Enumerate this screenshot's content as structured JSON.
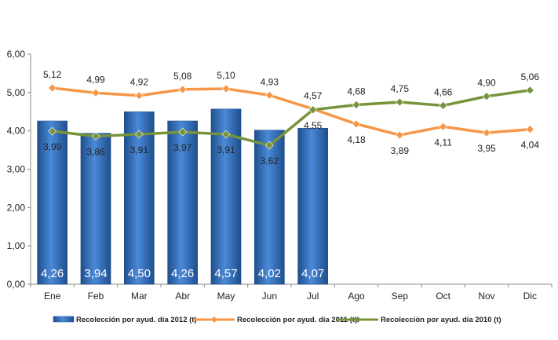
{
  "chart_data": {
    "type": "bar+line",
    "title": "",
    "xlabel": "",
    "ylabel": "",
    "ylim": [
      0,
      6
    ],
    "yticks": [
      "0,00",
      "1,00",
      "2,00",
      "3,00",
      "4,00",
      "5,00",
      "6,00"
    ],
    "grid": false,
    "legend_position": "bottom",
    "categories": [
      "Ene",
      "Feb",
      "Mar",
      "Abr",
      "May",
      "Jun",
      "Jul",
      "Ago",
      "Sep",
      "Oct",
      "Nov",
      "Dic"
    ],
    "series": [
      {
        "name": "Recolección por ayud. día 2012 (t)",
        "kind": "bar",
        "color": "#3a78c9",
        "values": [
          4.26,
          3.94,
          4.5,
          4.26,
          4.57,
          4.02,
          4.07,
          null,
          null,
          null,
          null,
          null
        ],
        "labels": [
          "4,26",
          "3,94",
          "4,50",
          "4,26",
          "4,57",
          "4,02",
          "4,07",
          "",
          "",
          "",
          "",
          ""
        ]
      },
      {
        "name": "Recolección por ayud. día 2011 (t)",
        "kind": "line",
        "color": "#f79646",
        "values": [
          5.12,
          4.99,
          4.92,
          5.08,
          5.1,
          4.93,
          4.57,
          4.18,
          3.89,
          4.11,
          3.95,
          4.04
        ],
        "labels": [
          "5,12",
          "4,99",
          "4,92",
          "5,08",
          "5,10",
          "4,93",
          "4,57",
          "4,18",
          "3,89",
          "4,11",
          "3,95",
          "4,04"
        ]
      },
      {
        "name": "Recolección por ayud. día 2010 (t)",
        "kind": "line",
        "color": "#77933c",
        "values": [
          3.99,
          3.86,
          3.91,
          3.97,
          3.91,
          3.62,
          4.55,
          4.68,
          4.75,
          4.66,
          4.9,
          5.06
        ],
        "labels": [
          "3,99",
          "3,86",
          "3,91",
          "3,97",
          "3,91",
          "3,62",
          "4,55",
          "4,68",
          "4,75",
          "4,66",
          "4,90",
          "5,06"
        ]
      }
    ]
  }
}
